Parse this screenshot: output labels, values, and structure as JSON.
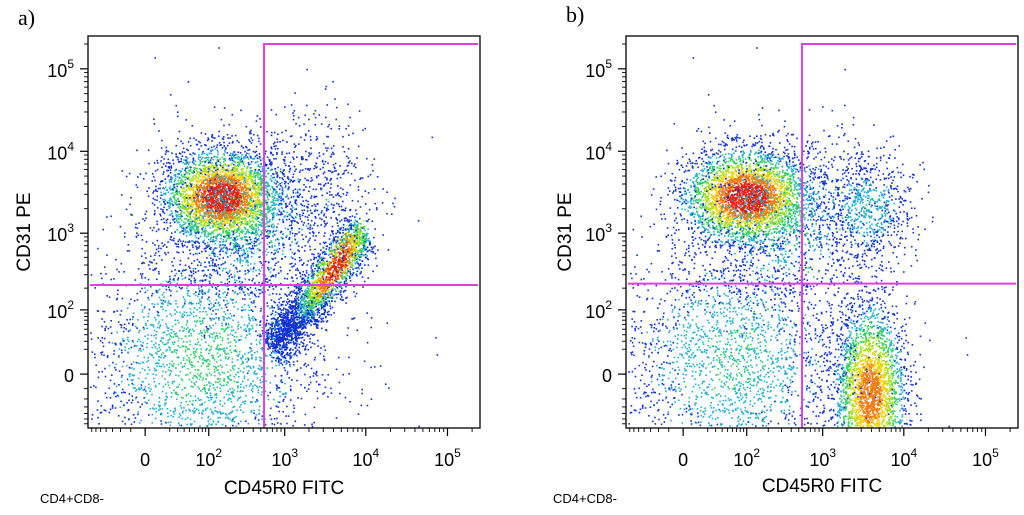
{
  "chart_data": [
    {
      "type": "scatter",
      "panel_label": "a)",
      "xlabel": "CD45R0 FITC",
      "ylabel": "CD31 PE",
      "footer": "CD4+CD8-",
      "x_scale": "biexponential",
      "y_scale": "biexponential",
      "xlim": [
        -80,
        250000
      ],
      "ylim": [
        -70,
        250000
      ],
      "x_ticks": [
        {
          "value": 0,
          "label": "0"
        },
        {
          "value": 100,
          "label": "10",
          "exp": "2"
        },
        {
          "value": 1000,
          "label": "10",
          "exp": "3"
        },
        {
          "value": 10000,
          "label": "10",
          "exp": "4"
        },
        {
          "value": 100000,
          "label": "10",
          "exp": "5"
        }
      ],
      "y_ticks": [
        {
          "value": 0,
          "label": "0"
        },
        {
          "value": 100,
          "label": "10",
          "exp": "2"
        },
        {
          "value": 1000,
          "label": "10",
          "exp": "3"
        },
        {
          "value": 10000,
          "label": "10",
          "exp": "4"
        },
        {
          "value": 100000,
          "label": "10",
          "exp": "5"
        }
      ],
      "gates": {
        "x": 550,
        "y": 220,
        "color": "#e040e0"
      },
      "populations": [
        {
          "name": "CD45R0- CD31+",
          "center": [
            150,
            2800
          ],
          "density": "high"
        },
        {
          "name": "CD45R0+ CD31+ diagonal",
          "from": [
            1200,
            150
          ],
          "to": [
            8000,
            900
          ],
          "density": "high"
        },
        {
          "name": "CD45R0- CD31-",
          "center": [
            80,
            20
          ],
          "density": "low"
        }
      ]
    },
    {
      "type": "scatter",
      "panel_label": "b)",
      "xlabel": "CD45R0 FITC",
      "ylabel": "CD31 PE",
      "footer": "CD4+CD8-",
      "x_scale": "biexponential",
      "y_scale": "biexponential",
      "xlim": [
        -80,
        250000
      ],
      "ylim": [
        -70,
        250000
      ],
      "x_ticks": [
        {
          "value": 0,
          "label": "0"
        },
        {
          "value": 100,
          "label": "10",
          "exp": "2"
        },
        {
          "value": 1000,
          "label": "10",
          "exp": "3"
        },
        {
          "value": 10000,
          "label": "10",
          "exp": "4"
        },
        {
          "value": 100000,
          "label": "10",
          "exp": "5"
        }
      ],
      "y_ticks": [
        {
          "value": 0,
          "label": "0"
        },
        {
          "value": 100,
          "label": "10",
          "exp": "2"
        },
        {
          "value": 1000,
          "label": "10",
          "exp": "3"
        },
        {
          "value": 10000,
          "label": "10",
          "exp": "4"
        },
        {
          "value": 100000,
          "label": "10",
          "exp": "5"
        }
      ],
      "gates": {
        "x": 550,
        "y": 230,
        "color": "#e040e0"
      },
      "populations": [
        {
          "name": "CD45R0- CD31+",
          "center": [
            100,
            2800
          ],
          "density": "high"
        },
        {
          "name": "CD45R0+ CD31-",
          "center": [
            4000,
            -20
          ],
          "density": "high"
        },
        {
          "name": "CD45R0+ CD31+",
          "center": [
            3500,
            2000
          ],
          "density": "low"
        },
        {
          "name": "CD45R0- CD31-",
          "center": [
            60,
            10
          ],
          "density": "low"
        }
      ]
    }
  ]
}
